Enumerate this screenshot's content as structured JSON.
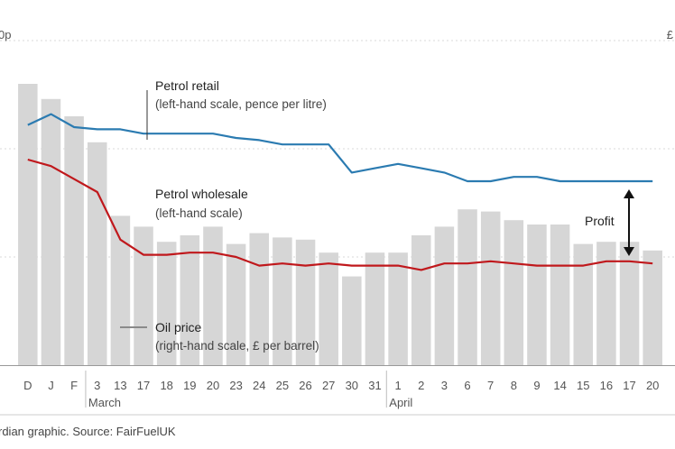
{
  "source": "rdian graphic. Source: FairFuelUK",
  "left_unit_fragment": "0p",
  "right_unit_fragment": "£",
  "chart_data": {
    "type": "bar",
    "categories": [
      "D",
      "J",
      "F",
      "3",
      "13",
      "17",
      "18",
      "19",
      "20",
      "23",
      "24",
      "25",
      "26",
      "27",
      "30",
      "31",
      "1",
      "2",
      "3",
      "6",
      "7",
      "8",
      "9",
      "14",
      "15",
      "16",
      "17",
      "20"
    ],
    "month_labels": [
      {
        "label": "March",
        "category_index": 3
      },
      {
        "label": "April",
        "category_index": 16
      }
    ],
    "ylim_left": [
      0,
      150
    ],
    "ylim_right": [
      0,
      150
    ],
    "grid": true,
    "series": [
      {
        "name": "Oil price",
        "axis": "right",
        "kind": "bar",
        "color": "#d6d6d6",
        "values": [
          130,
          123,
          115,
          103,
          69,
          64,
          57,
          60,
          64,
          56,
          61,
          59,
          58,
          52,
          41,
          52,
          52,
          60,
          64,
          72,
          71,
          67,
          65,
          65,
          56,
          57,
          57,
          53
        ]
      },
      {
        "name": "Petrol retail",
        "axis": "left",
        "kind": "line",
        "color": "#2b7bb1",
        "values": [
          111,
          116,
          110,
          109,
          109,
          107,
          107,
          107,
          107,
          105,
          104,
          102,
          102,
          102,
          89,
          91,
          93,
          91,
          89,
          85,
          85,
          87,
          87,
          85,
          85,
          85,
          85,
          85
        ]
      },
      {
        "name": "Petrol wholesale",
        "axis": "left",
        "kind": "line",
        "color": "#c0181c",
        "values": [
          95,
          92,
          86,
          80,
          58,
          51,
          51,
          52,
          52,
          50,
          46,
          47,
          46,
          47,
          46,
          46,
          46,
          44,
          47,
          47,
          48,
          47,
          46,
          46,
          46,
          48,
          48,
          47
        ]
      }
    ],
    "annotations": {
      "retail_title": "Petrol retail",
      "retail_sub": "(left-hand scale, pence per litre)",
      "wholesale_title": "Petrol wholesale",
      "wholesale_sub": "(left-hand scale)",
      "oil_title": "Oil price",
      "oil_sub": "(right-hand scale, £ per barrel)",
      "profit_label": "Profit"
    }
  }
}
